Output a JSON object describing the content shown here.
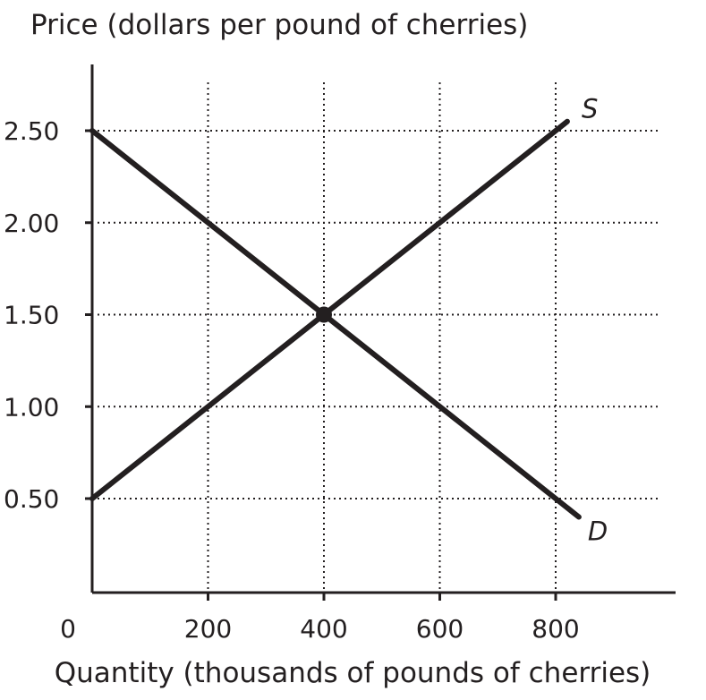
{
  "chart_data": {
    "type": "line",
    "ylabel": "Price (dollars per pound of cherries)",
    "xlabel": "Quantity (thousands of pounds of cherries)",
    "origin_label": "0",
    "xlim": [
      0,
      950
    ],
    "ylim": [
      0,
      2.8
    ],
    "x_ticks": [
      {
        "value": 200,
        "label": "200"
      },
      {
        "value": 400,
        "label": "400"
      },
      {
        "value": 600,
        "label": "600"
      },
      {
        "value": 800,
        "label": "800"
      }
    ],
    "y_ticks": [
      {
        "value": 0.5,
        "label": "0.50"
      },
      {
        "value": 1.0,
        "label": "1.00"
      },
      {
        "value": 1.5,
        "label": "1.50"
      },
      {
        "value": 2.0,
        "label": "2.00"
      },
      {
        "value": 2.5,
        "label": "2.50"
      }
    ],
    "grid": true,
    "series": [
      {
        "name": "S",
        "x": [
          0,
          820
        ],
        "y": [
          0.5,
          2.55
        ]
      },
      {
        "name": "D",
        "x": [
          0,
          840
        ],
        "y": [
          2.5,
          0.4
        ]
      }
    ],
    "points": [
      {
        "x": 400,
        "y": 1.5
      }
    ]
  }
}
